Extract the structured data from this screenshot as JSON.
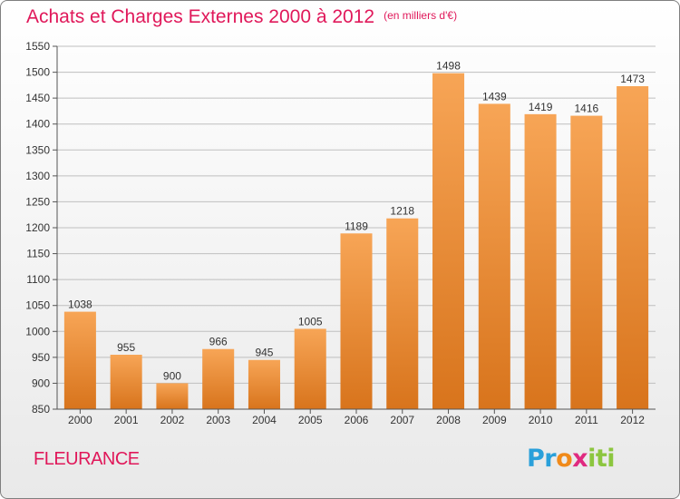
{
  "title": "Achats et Charges Externes 2000 à 2012",
  "unit": "(en milliers d'€)",
  "city": "FLEURANCE",
  "logo": {
    "parts": [
      "Pr",
      "o",
      "x",
      "iti"
    ]
  },
  "colors": {
    "title": "#e0185a",
    "bar_light": "#f7a556",
    "bar_dark": "#d8741c",
    "grid": "#bfbfbf"
  },
  "chart_data": {
    "type": "bar",
    "title": "Achats et Charges Externes 2000 à 2012",
    "subtitle": "(en milliers d'€)",
    "categories": [
      "2000",
      "2001",
      "2002",
      "2003",
      "2004",
      "2005",
      "2006",
      "2007",
      "2008",
      "2009",
      "2010",
      "2011",
      "2012"
    ],
    "values": [
      1038,
      955,
      900,
      966,
      945,
      1005,
      1189,
      1218,
      1498,
      1439,
      1419,
      1416,
      1473
    ],
    "ylim": [
      850,
      1550
    ],
    "yticks": [
      850,
      900,
      950,
      1000,
      1050,
      1100,
      1150,
      1200,
      1250,
      1300,
      1350,
      1400,
      1450,
      1500,
      1550
    ],
    "grid": true,
    "legend": "none"
  }
}
